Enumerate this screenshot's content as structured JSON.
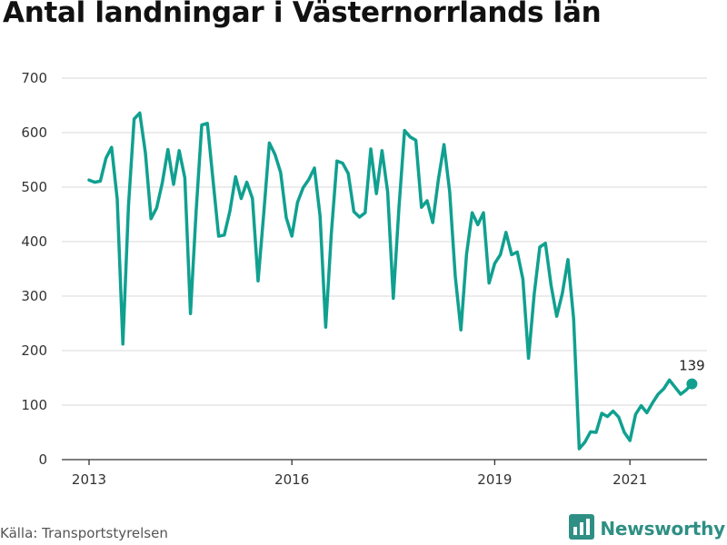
{
  "title": "Antal landningar i Västernorrlands län",
  "source": "Källa: Transportstyrelsen",
  "brand": {
    "name": "Newsworthy",
    "logo_icon": "bar-chart-logo-icon",
    "color": "#2f8f84"
  },
  "chart_data": {
    "type": "line",
    "title": "Antal landningar i Västernorrlands län",
    "xlabel": "",
    "ylabel": "",
    "y_ticks": [
      0,
      100,
      200,
      300,
      400,
      500,
      600,
      700
    ],
    "ylim": [
      0,
      700
    ],
    "x_ticks": [
      "2013",
      "2016",
      "2019",
      "2021"
    ],
    "grid": true,
    "line_color": "#10a090",
    "end_label": "139",
    "series": [
      {
        "values": [
          513,
          509,
          511,
          553,
          573,
          478,
          212,
          466,
          625,
          636,
          563,
          442,
          462,
          508,
          569,
          505,
          567,
          517,
          268,
          455,
          614,
          617,
          513,
          410,
          412,
          456,
          519,
          479,
          509,
          479,
          328,
          451,
          581,
          560,
          527,
          444,
          410,
          472,
          499,
          514,
          535,
          447,
          243,
          415,
          548,
          544,
          525,
          455,
          445,
          453,
          570,
          488,
          567,
          491,
          296,
          462,
          604,
          592,
          586,
          463,
          475,
          435,
          514,
          578,
          492,
          336,
          238,
          377,
          453,
          431,
          453,
          324,
          360,
          376,
          417,
          376,
          381,
          331,
          186,
          303,
          390,
          397,
          320,
          263,
          305,
          367,
          259,
          20,
          32,
          51,
          50,
          85,
          79,
          89,
          78,
          50,
          35,
          83,
          99,
          86,
          104,
          120,
          130,
          146,
          133,
          120,
          128,
          139
        ]
      }
    ]
  }
}
